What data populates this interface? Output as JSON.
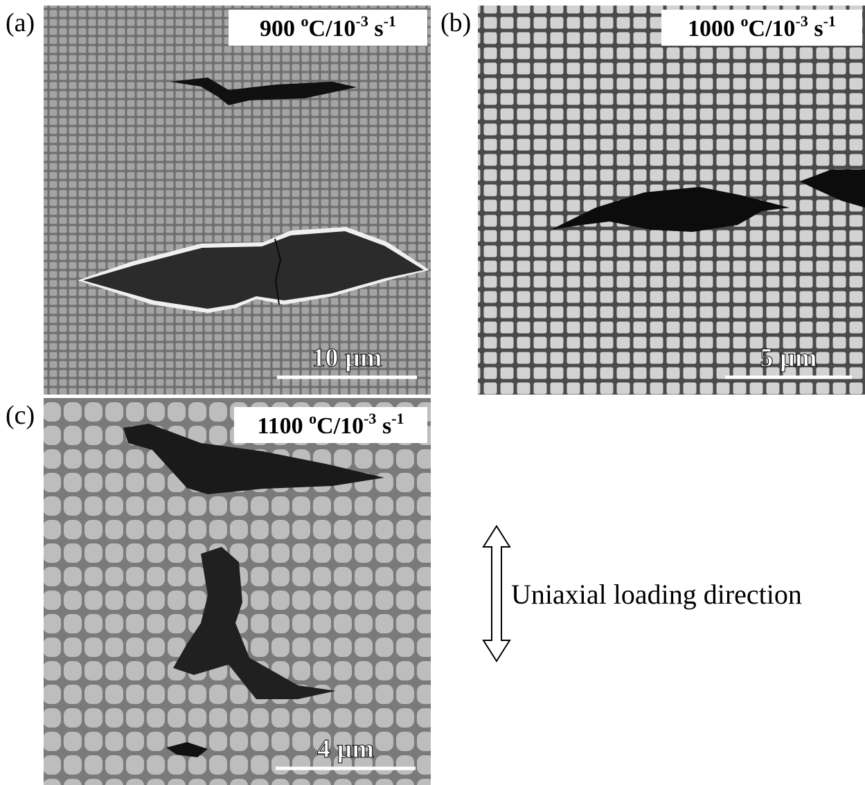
{
  "panels": [
    {
      "label": "(a)",
      "condition": [
        {
          "text": "900 "
        },
        {
          "text": "o",
          "sup": true
        },
        {
          "text": "C/10"
        },
        {
          "text": "-3",
          "sup": true
        },
        {
          "text": " s"
        },
        {
          "text": "-1",
          "sup": true
        }
      ],
      "scale_bar": "10 µm"
    },
    {
      "label": "(b)",
      "condition": [
        {
          "text": "1000 "
        },
        {
          "text": "o",
          "sup": true
        },
        {
          "text": "C/10"
        },
        {
          "text": "-3",
          "sup": true
        },
        {
          "text": " s"
        },
        {
          "text": "-1",
          "sup": true
        }
      ],
      "scale_bar": "5 µm"
    },
    {
      "label": "(c)",
      "condition": [
        {
          "text": "1100 "
        },
        {
          "text": "o",
          "sup": true
        },
        {
          "text": "C/10"
        },
        {
          "text": "-3",
          "sup": true
        },
        {
          "text": " s"
        },
        {
          "text": "-1",
          "sup": true
        }
      ],
      "scale_bar": "4 µm"
    }
  ],
  "loading_direction": "Uniaxial loading direction"
}
